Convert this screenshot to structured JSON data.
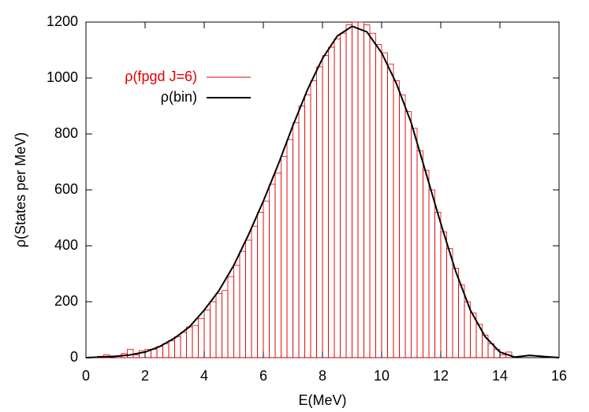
{
  "chart_data": {
    "type": "histogram",
    "xlabel": "E(MeV)",
    "ylabel": "ρ(States per MeV)",
    "xlim": [
      0,
      16
    ],
    "ylim": [
      0,
      1200
    ],
    "xticks": [
      0,
      2,
      4,
      6,
      8,
      10,
      12,
      14,
      16
    ],
    "yticks": [
      0,
      200,
      400,
      600,
      800,
      1000,
      1200
    ],
    "series": [
      {
        "type": "histogram",
        "name": "ρ(fpgd J=6)",
        "color": "#e00000",
        "bins": [
          0,
          0.2,
          0.4,
          0.6,
          0.8,
          1,
          1.2,
          1.4,
          1.6,
          1.8,
          2,
          2.2,
          2.4,
          2.6,
          2.8,
          3,
          3.2,
          3.4,
          3.6,
          3.8,
          4,
          4.2,
          4.4,
          4.6,
          4.8,
          5,
          5.2,
          5.4,
          5.6,
          5.8,
          6,
          6.2,
          6.4,
          6.6,
          6.8,
          7,
          7.2,
          7.4,
          7.6,
          7.8,
          8,
          8.2,
          8.4,
          8.6,
          8.8,
          9,
          9.2,
          9.4,
          9.6,
          9.8,
          10,
          10.2,
          10.4,
          10.6,
          10.8,
          11,
          11.2,
          11.4,
          11.6,
          11.8,
          12,
          12.2,
          12.4,
          12.6,
          12.8,
          13,
          13.2,
          13.4,
          13.6,
          13.8,
          14,
          14.2,
          14.4,
          14.6,
          14.8,
          15,
          15.2,
          15.4,
          15.6,
          15.8,
          16
        ],
        "values": [
          0,
          0,
          5,
          10,
          0,
          5,
          15,
          30,
          10,
          25,
          30,
          30,
          40,
          50,
          60,
          75,
          90,
          110,
          115,
          140,
          170,
          200,
          230,
          240,
          290,
          330,
          380,
          420,
          470,
          520,
          560,
          620,
          660,
          720,
          780,
          840,
          900,
          940,
          990,
          1040,
          1080,
          1110,
          1140,
          1160,
          1190,
          1200,
          1200,
          1190,
          1160,
          1120,
          1090,
          1050,
          990,
          940,
          880,
          820,
          740,
          670,
          600,
          520,
          450,
          390,
          320,
          260,
          200,
          160,
          120,
          80,
          50,
          30,
          10,
          20,
          0,
          0,
          0,
          0,
          0,
          0,
          0,
          0
        ]
      },
      {
        "type": "line",
        "name": "ρ(bin)",
        "color": "#000000",
        "x": [
          0,
          0.5,
          1,
          1.5,
          2,
          2.5,
          3,
          3.5,
          4,
          4.5,
          5,
          5.5,
          6,
          6.5,
          7,
          7.5,
          8,
          8.5,
          9,
          9.5,
          10,
          10.5,
          11,
          11.5,
          12,
          12.5,
          13,
          13.5,
          14,
          14.5,
          15,
          15.5,
          16
        ],
        "values": [
          0,
          2,
          5,
          10,
          20,
          40,
          70,
          110,
          170,
          240,
          330,
          440,
          560,
          690,
          830,
          960,
          1070,
          1150,
          1185,
          1165,
          1090,
          980,
          840,
          660,
          480,
          310,
          170,
          75,
          20,
          2,
          8,
          4,
          0
        ]
      }
    ]
  }
}
